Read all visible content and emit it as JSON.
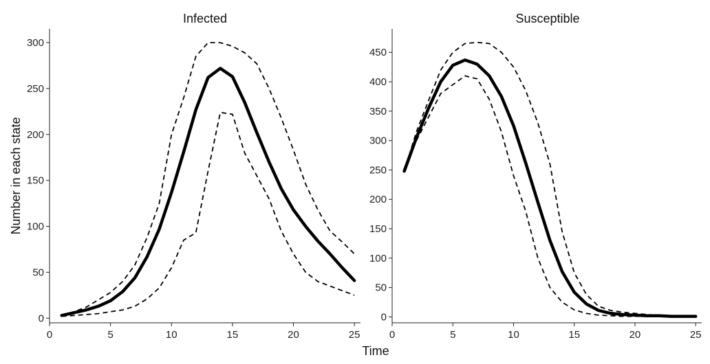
{
  "chart_data": {
    "type": "line",
    "xlabel": "Time",
    "ylabel": "Number in each state",
    "panels": [
      {
        "title": "Infected",
        "xlim": [
          0,
          25.5
        ],
        "ylim": [
          -5,
          315
        ],
        "xticks": [
          0,
          5,
          10,
          15,
          20,
          25
        ],
        "yticks": [
          0,
          50,
          100,
          150,
          200,
          250,
          300
        ],
        "x": [
          1,
          2,
          3,
          4,
          5,
          6,
          7,
          8,
          9,
          10,
          11,
          12,
          13,
          14,
          15,
          16,
          17,
          18,
          19,
          20,
          21,
          22,
          23,
          24,
          25
        ],
        "series": [
          {
            "style": "solid",
            "values": [
              3,
              6,
              9,
              13,
              19,
              29,
              44,
              67,
              97,
              137,
              181,
              227,
              262,
              272,
              263,
              235,
              202,
              170,
              141,
              118,
              100,
              84,
              70,
              55,
              41
            ]
          },
          {
            "style": "dashed",
            "values": [
              3,
              7,
              12,
              20,
              28,
              40,
              58,
              88,
              125,
              200,
              240,
              285,
              300,
              300,
              296,
              289,
              277,
              250,
              218,
              183,
              146,
              118,
              95,
              83,
              70
            ]
          },
          {
            "style": "dashed",
            "values": [
              2,
              3,
              4,
              5,
              7,
              9,
              13,
              21,
              33,
              55,
              85,
              93,
              160,
              224,
              222,
              180,
              155,
              130,
              95,
              70,
              50,
              40,
              35,
              30,
              25
            ]
          }
        ]
      },
      {
        "title": "Susceptible",
        "xlim": [
          0,
          25.5
        ],
        "ylim": [
          -10,
          490
        ],
        "xticks": [
          0,
          5,
          10,
          15,
          20,
          25
        ],
        "yticks": [
          0,
          50,
          100,
          150,
          200,
          250,
          300,
          350,
          400,
          450
        ],
        "x": [
          1,
          2,
          3,
          4,
          5,
          6,
          7,
          8,
          9,
          10,
          11,
          12,
          13,
          14,
          15,
          16,
          17,
          18,
          19,
          20,
          21,
          22,
          23,
          24,
          25
        ],
        "series": [
          {
            "style": "solid",
            "values": [
              248,
              305,
              355,
              400,
              428,
              437,
              430,
              410,
              375,
              325,
              262,
              195,
              130,
              77,
              42,
              22,
              11,
              6,
              4,
              3,
              2,
              2,
              1,
              1,
              1
            ]
          },
          {
            "style": "dashed",
            "values": [
              248,
              315,
              368,
              420,
              450,
              465,
              467,
              465,
              450,
              425,
              385,
              330,
              260,
              145,
              75,
              38,
              18,
              11,
              8,
              6,
              4,
              3,
              2,
              1,
              1
            ]
          },
          {
            "style": "dashed",
            "values": [
              248,
              300,
              340,
              380,
              395,
              410,
              405,
              370,
              315,
              240,
              180,
              100,
              50,
              25,
              12,
              6,
              3,
              2,
              1,
              1,
              1,
              1,
              1,
              1,
              1
            ]
          }
        ]
      }
    ]
  }
}
